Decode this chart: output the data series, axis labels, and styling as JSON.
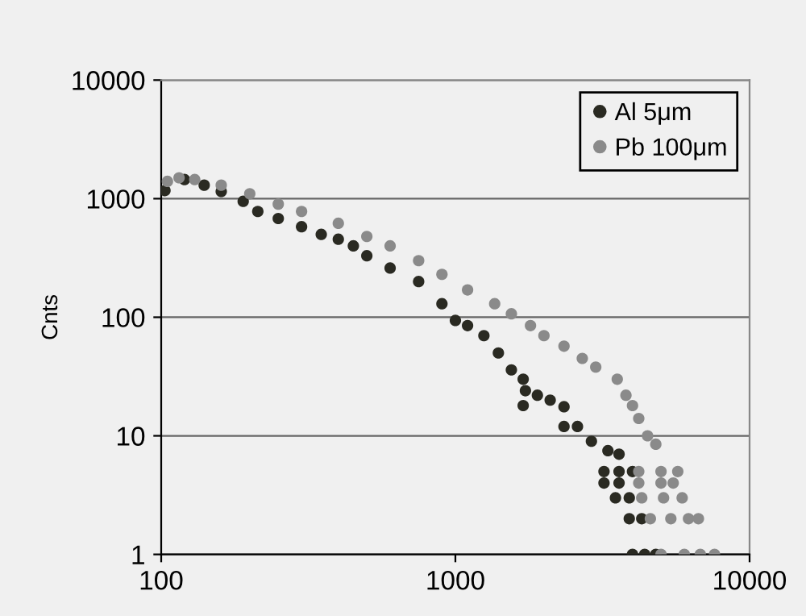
{
  "chart_data": {
    "type": "scatter",
    "ylabel": "Cnts",
    "log": "xy",
    "xlim": [
      100,
      10000
    ],
    "ylim": [
      1,
      10000
    ],
    "xticks": [
      100,
      1000,
      10000
    ],
    "yticks": [
      1,
      10,
      100,
      1000,
      10000
    ],
    "grid": "y",
    "legend": "top right",
    "marker": "circle",
    "series": [
      {
        "name": "Al 5μm",
        "color": "#2a2a22",
        "x": [
          103,
          120,
          140,
          160,
          190,
          213,
          250,
          300,
          350,
          400,
          450,
          500,
          600,
          750,
          900,
          1000,
          1100,
          1250,
          1400,
          1550,
          1700,
          1730,
          1700,
          1900,
          2100,
          2340,
          2340,
          2600,
          2900,
          3300,
          3600,
          3200,
          3600,
          4000,
          3200,
          3600,
          3500,
          3900,
          3900,
          4300,
          4000,
          4400,
          4800
        ],
        "values": [
          1170,
          1450,
          1300,
          1150,
          950,
          780,
          680,
          580,
          500,
          455,
          400,
          330,
          260,
          200,
          130,
          94,
          85,
          70,
          50,
          36,
          30,
          24,
          18,
          22,
          20,
          17.6,
          12,
          12,
          9,
          7.5,
          7,
          5,
          5,
          5,
          4,
          4,
          3,
          3,
          2,
          2,
          1,
          1,
          1
        ]
      },
      {
        "name": "Pb 100μm",
        "color": "#8a8a8a",
        "x": [
          105,
          115,
          130,
          160,
          200,
          250,
          300,
          400,
          500,
          600,
          750,
          900,
          1100,
          1360,
          1550,
          1800,
          2000,
          2340,
          2700,
          3000,
          3550,
          3800,
          4000,
          4200,
          4500,
          4800,
          4200,
          5000,
          5700,
          4200,
          5000,
          5500,
          4300,
          5100,
          5900,
          4600,
          5400,
          6200,
          6700,
          5000,
          6000,
          6800,
          7600
        ],
        "values": [
          1400,
          1500,
          1450,
          1300,
          1100,
          900,
          780,
          620,
          480,
          400,
          300,
          230,
          170,
          130,
          107,
          85,
          70,
          57,
          45,
          38,
          30,
          22,
          18,
          14,
          10,
          8.5,
          5,
          5,
          5,
          4,
          4,
          4,
          3,
          3,
          3,
          2,
          2,
          2,
          2,
          1,
          1,
          1,
          1
        ]
      }
    ]
  }
}
